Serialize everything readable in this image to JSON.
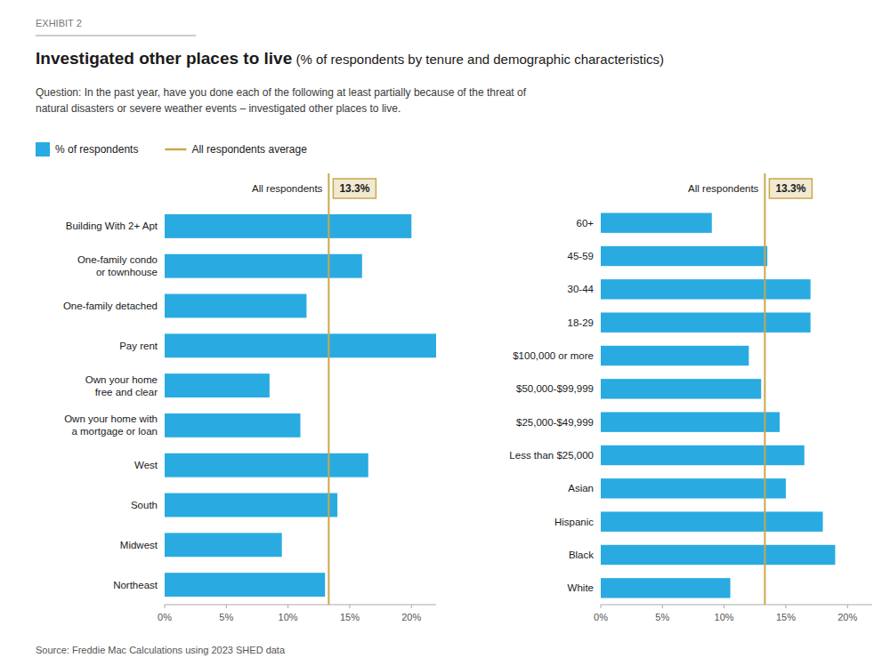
{
  "chart_data": [
    {
      "type": "bar",
      "orientation": "horizontal",
      "caption": "EXHIBIT 2",
      "title": "Investigated other places to live",
      "subtitle": " (% of respondents by tenure and demographic characteristics)",
      "note": "Question: In the past year, have you done each of the following at least partially because of the threat of\nnatural disasters or severe weather events – investigated other places to live.",
      "source": "Source: Freddie Mac Calculations using 2023 SHED data",
      "categories": [
        "Building With 2+ Apt",
        "One-family condo\nor townhouse",
        "One-family detached",
        "Pay rent",
        "Own your home\nfree and clear",
        "Own your home with\na mortgage or loan",
        "West",
        "South",
        "Midwest",
        "Northeast"
      ],
      "series": [
        {
          "name": "% of respondents",
          "color": "#29ABE2",
          "values": [
            20.0,
            16.0,
            11.5,
            22.0,
            8.5,
            11.0,
            16.5,
            14.0,
            9.5,
            13.0
          ]
        }
      ],
      "average": {
        "name": "All respondents average",
        "label": "All respondents",
        "value": 13.3,
        "value_label": "13.3%",
        "color": "#C9A84C"
      },
      "xlim": [
        0,
        22
      ],
      "xticks": [
        {
          "value": 0,
          "label": "0%"
        },
        {
          "value": 5,
          "label": "5%"
        },
        {
          "value": 10,
          "label": "10%"
        },
        {
          "value": 15,
          "label": "15%"
        },
        {
          "value": 20,
          "label": "20%"
        }
      ],
      "grid": false
    },
    {
      "type": "bar",
      "orientation": "horizontal",
      "categories": [
        "60+",
        "45-59",
        "30-44",
        "18-29",
        "$100,000 or more",
        "$50,000-$99,999",
        "$25,000-$49,999",
        "Less than $25,000",
        "Asian",
        "Hispanic",
        "Black",
        "White"
      ],
      "series": [
        {
          "color": "#29ABE2",
          "values": [
            9.0,
            13.5,
            17.0,
            17.0,
            12.0,
            13.0,
            14.5,
            16.5,
            15.0,
            18.0,
            19.0,
            10.5
          ]
        }
      ],
      "average": {
        "label": "All respondents",
        "value": 13.3,
        "value_label": "13.3%",
        "color": "#C9A84C"
      },
      "xlim": [
        0,
        22
      ],
      "xticks": [
        {
          "value": 0,
          "label": "0%"
        },
        {
          "value": 5,
          "label": "5%"
        },
        {
          "value": 10,
          "label": "10%"
        },
        {
          "value": 15,
          "label": "15%"
        },
        {
          "value": 20,
          "label": "20%"
        }
      ],
      "grid": false
    }
  ]
}
